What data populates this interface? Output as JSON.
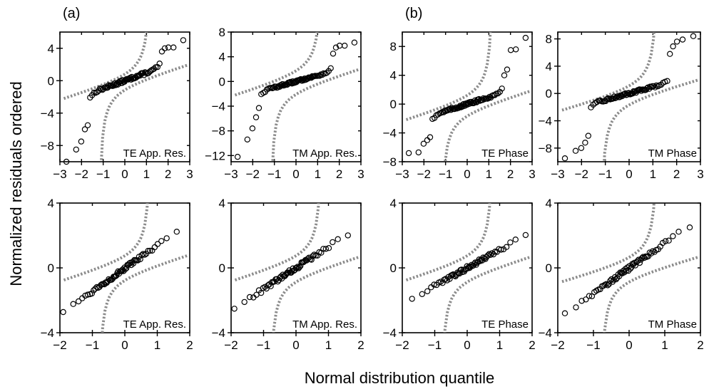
{
  "figure": {
    "ylabel": "Normalized residuals ordered",
    "xlabel": "Normal distribution quantile",
    "groups": [
      {
        "label": "(a)"
      },
      {
        "label": "(b)"
      }
    ]
  },
  "style": {
    "point_color": "#000000",
    "envelope_color": "#8c8c8c",
    "axis_color": "#000000"
  },
  "chart_data": [
    {
      "type": "scatter",
      "group": "(a)",
      "annotation": "TE App. Res.",
      "xlim": [
        -3,
        3
      ],
      "ylim": [
        -10,
        6
      ],
      "xticks": [
        -3,
        -2,
        -1,
        0,
        1,
        2,
        3
      ],
      "yticks": [
        -8,
        -4,
        0,
        4
      ],
      "n_points": 80,
      "extremes": {
        "low": [
          -10,
          -8.5,
          -7.5,
          -6,
          -5.5
        ],
        "high": [
          3.6,
          4,
          4.1,
          4.1,
          5
        ]
      },
      "envelope": {
        "lower_left_y": -2.5,
        "upper_right_y": 2.2
      },
      "grid": false
    },
    {
      "type": "scatter",
      "group": "(a)",
      "annotation": "TM App. Res.",
      "xlim": [
        -3,
        3
      ],
      "ylim": [
        -13,
        8
      ],
      "xticks": [
        -3,
        -2,
        -1,
        0,
        1,
        2,
        3
      ],
      "yticks": [
        -12,
        -8,
        -4,
        0,
        4,
        8
      ],
      "n_points": 80,
      "extremes": {
        "low": [
          -12.2,
          -9.4,
          -7.6,
          -5.8,
          -4.3
        ],
        "high": [
          4.5,
          5.5,
          5.8,
          5.8,
          6.3
        ]
      },
      "envelope": {
        "lower_left_y": -2.6,
        "upper_right_y": 2.3
      },
      "grid": false
    },
    {
      "type": "scatter",
      "group": "(a)",
      "annotation": "TE Phase",
      "xlim": [
        -3,
        3
      ],
      "ylim": [
        -8,
        10
      ],
      "xticks": [
        -3,
        -2,
        -1,
        0,
        1,
        2,
        3
      ],
      "yticks": [
        -8,
        -4,
        0,
        4,
        8
      ],
      "n_points": 80,
      "extremes": {
        "low": [
          -6.8,
          -6.7,
          -5.5,
          -5,
          -4.6
        ],
        "high": [
          4,
          4.8,
          7.5,
          7.6,
          9.2
        ]
      },
      "envelope": {
        "lower_left_y": -2.5,
        "upper_right_y": 2.1
      },
      "grid": false
    },
    {
      "type": "scatter",
      "group": "(a)",
      "annotation": "TM Phase",
      "xlim": [
        -3,
        3
      ],
      "ylim": [
        -10,
        9
      ],
      "xticks": [
        -3,
        -2,
        -1,
        0,
        1,
        2,
        3
      ],
      "yticks": [
        -8,
        -4,
        0,
        4,
        8
      ],
      "n_points": 80,
      "extremes": {
        "low": [
          -9.5,
          -8.4,
          -8,
          -7.2,
          -6.2
        ],
        "high": [
          5.8,
          6.9,
          7.6,
          7.9,
          8.4
        ]
      },
      "envelope": {
        "lower_left_y": -2.8,
        "upper_right_y": 2.3
      },
      "grid": false
    },
    {
      "type": "scatter",
      "group": "(b)",
      "annotation": "TE App. Res.",
      "xlim": [
        -2,
        2
      ],
      "ylim": [
        -4,
        4
      ],
      "xticks": [
        -2,
        -1,
        0,
        1,
        2
      ],
      "yticks": [
        -4,
        0,
        4
      ],
      "n_points": 65,
      "point_range": {
        "x": [
          -1.9,
          1.6
        ],
        "y": [
          -2.7,
          2.2
        ]
      },
      "envelope": {
        "lower_left_y": -0.9,
        "upper_right_y": 0.9
      },
      "grid": false
    },
    {
      "type": "scatter",
      "group": "(b)",
      "annotation": "TM App. Res.",
      "xlim": [
        -2,
        2
      ],
      "ylim": [
        -4,
        4
      ],
      "xticks": [
        -2,
        -1,
        0,
        1,
        2
      ],
      "yticks": [
        -4,
        0,
        4
      ],
      "n_points": 65,
      "point_range": {
        "x": [
          -1.9,
          1.6
        ],
        "y": [
          -2.5,
          2.1
        ]
      },
      "envelope": {
        "lower_left_y": -0.9,
        "upper_right_y": 0.8
      },
      "grid": false
    },
    {
      "type": "scatter",
      "group": "(b)",
      "annotation": "TE Phase",
      "xlim": [
        -2,
        2
      ],
      "ylim": [
        -4,
        4
      ],
      "xticks": [
        -2,
        -1,
        0,
        1,
        2
      ],
      "yticks": [
        -4,
        0,
        4
      ],
      "n_points": 65,
      "point_range": {
        "x": [
          -1.7,
          1.8
        ],
        "y": [
          -1.9,
          2.0
        ]
      },
      "envelope": {
        "lower_left_y": -0.9,
        "upper_right_y": 0.8
      },
      "grid": false
    },
    {
      "type": "scatter",
      "group": "(b)",
      "annotation": "TM Phase",
      "xlim": [
        -2,
        2
      ],
      "ylim": [
        -4,
        4
      ],
      "xticks": [
        -2,
        -1,
        0,
        1,
        2
      ],
      "yticks": [
        -4,
        0,
        4
      ],
      "n_points": 65,
      "point_range": {
        "x": [
          -1.8,
          1.7
        ],
        "y": [
          -2.8,
          2.6
        ]
      },
      "envelope": {
        "lower_left_y": -1.0,
        "upper_right_y": 0.8
      },
      "grid": false
    }
  ]
}
